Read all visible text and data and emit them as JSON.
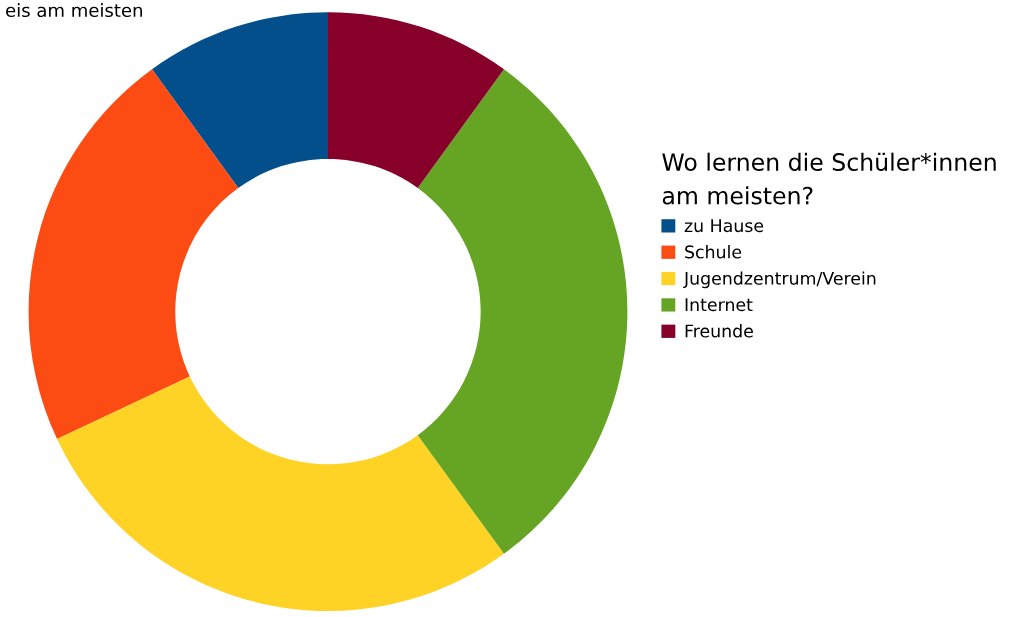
{
  "chart_data": {
    "type": "donut",
    "legend_title": "Wo lernen die Schüler*innen\nam meisten?",
    "annotations": [
      "eis am meisten"
    ],
    "categories": [
      "zu Hause",
      "Schule",
      "Jugendzentrum/Verein",
      "Internet",
      "Freunde"
    ],
    "values": [
      10,
      22,
      28,
      30,
      10
    ],
    "colors": [
      "#034f8c",
      "#fc4c14",
      "#fed326",
      "#66a524",
      "#86002a"
    ],
    "legend": "right"
  }
}
